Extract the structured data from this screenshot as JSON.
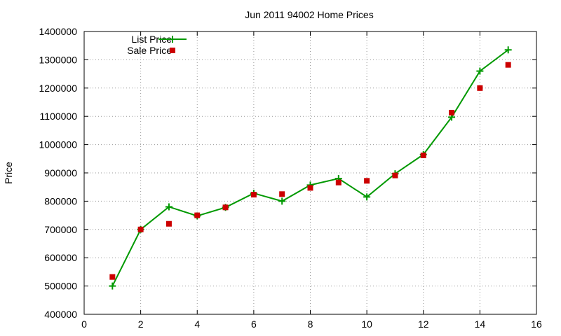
{
  "chart_data": {
    "type": "line",
    "title": "Jun 2011 94002 Home Prices",
    "xlabel": "",
    "ylabel": "Price",
    "xlim": [
      0,
      16
    ],
    "ylim": [
      400000,
      1400000
    ],
    "x_ticks": [
      "0",
      "2",
      "4",
      "6",
      "8",
      "10",
      "12",
      "14",
      "16"
    ],
    "y_ticks": [
      "400000",
      "500000",
      "600000",
      "700000",
      "800000",
      "900000",
      "1000000",
      "1100000",
      "1200000",
      "1300000",
      "1400000"
    ],
    "grid": true,
    "legend_position": "top-left",
    "series": [
      {
        "name": "List Price",
        "style": "line+cross",
        "color": "#009900",
        "x": [
          1,
          2,
          3,
          4,
          5,
          6,
          7,
          8,
          9,
          10,
          11,
          12,
          13,
          14,
          15
        ],
        "y": [
          500000,
          700000,
          780000,
          748000,
          778000,
          828000,
          800000,
          857000,
          880000,
          815000,
          897000,
          965000,
          1097000,
          1260000,
          1335000
        ]
      },
      {
        "name": "Sale Price",
        "style": "square",
        "color": "#cc0000",
        "x": [
          1,
          2,
          3,
          4,
          5,
          6,
          7,
          8,
          9,
          10,
          11,
          12,
          13,
          14,
          15
        ],
        "y": [
          532000,
          700000,
          720000,
          750000,
          778000,
          823000,
          825000,
          847000,
          866000,
          872000,
          891000,
          962000,
          1113000,
          1200000,
          1282000
        ]
      }
    ]
  }
}
